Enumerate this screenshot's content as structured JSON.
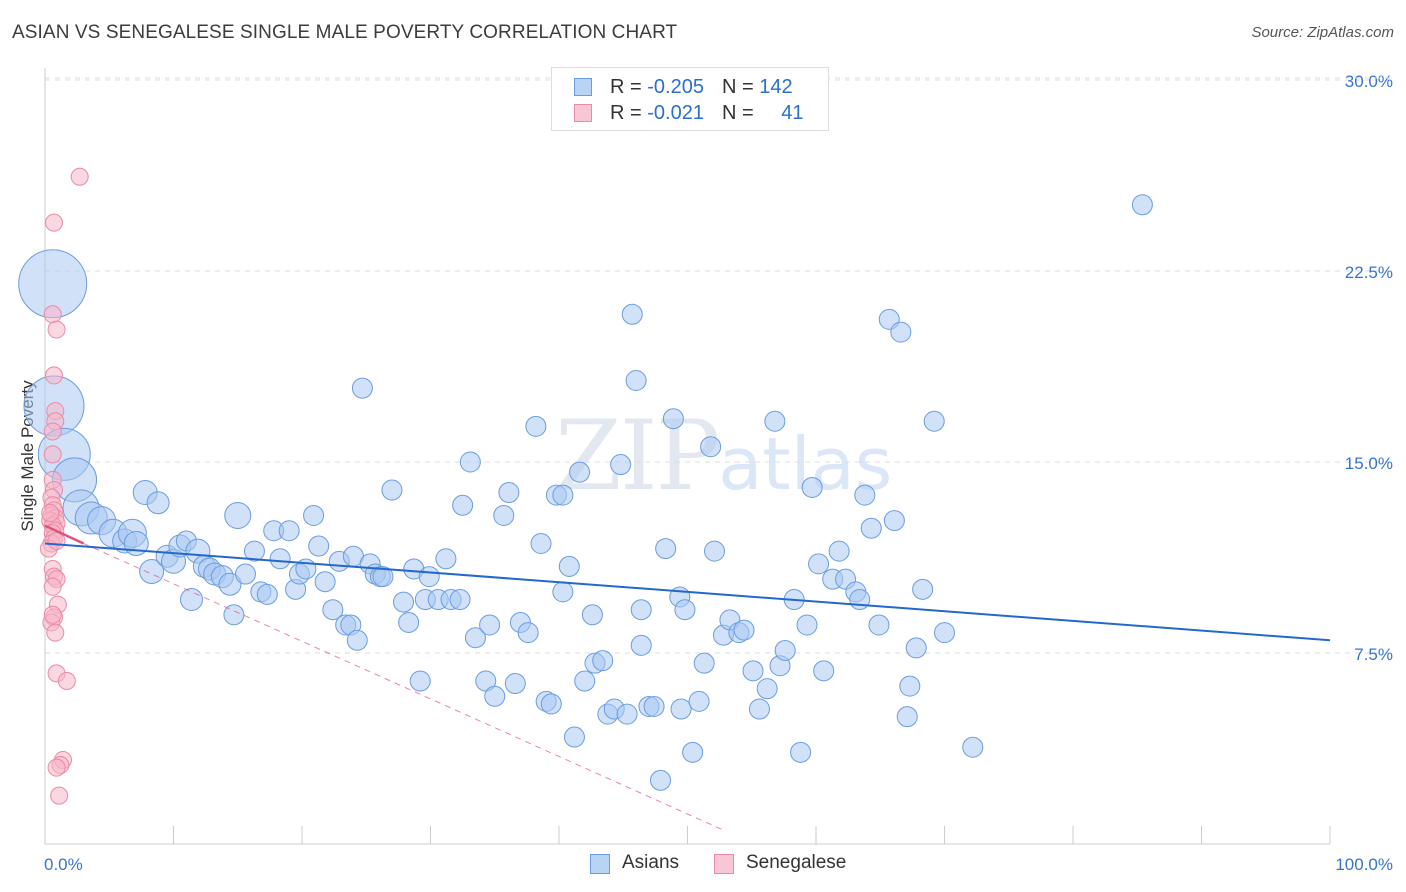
{
  "title": "ASIAN VS SENEGALESE SINGLE MALE POVERTY CORRELATION CHART",
  "source": "Source: ZipAtlas.com",
  "watermark": {
    "zip": "ZIP",
    "atlas": "atlas"
  },
  "colors": {
    "asian_fill": "#a9c8f2",
    "asian_stroke": "#6a9ce0",
    "asian_line": "#2468cc",
    "senegalese_fill": "#f7b6c9",
    "senegalese_stroke": "#e98aa7",
    "senegalese_line": "#e0527c",
    "axis_label": "#3575d0",
    "grid": "#dddddd"
  },
  "legend": {
    "rows": [
      {
        "r_label": "R = ",
        "r_value": "-0.205",
        "n_label": "N = ",
        "n_value": "142"
      },
      {
        "r_label": "R = ",
        "r_value": "-0.021",
        "n_label": "N = ",
        "n_value": "41"
      }
    ]
  },
  "chart_data": {
    "type": "scatter",
    "title": "ASIAN VS SENEGALESE SINGLE MALE POVERTY CORRELATION CHART",
    "xlabel": "",
    "ylabel": "Single Male Poverty",
    "xlim": [
      0,
      100
    ],
    "ylim": [
      0,
      30
    ],
    "x_tick_labels": [
      "0.0%",
      "100.0%"
    ],
    "y_ticks": [
      7.5,
      15.0,
      22.5,
      30.0
    ],
    "y_tick_labels": [
      "7.5%",
      "15.0%",
      "22.5%",
      "30.0%"
    ],
    "grid": true,
    "legend_position": "bottom-center",
    "series": [
      {
        "name": "Asians",
        "r": -0.205,
        "n": 142,
        "trend": {
          "x": [
            0,
            100
          ],
          "y": [
            11.8,
            8.0
          ]
        },
        "points": [
          [
            0.6,
            22.0,
            34
          ],
          [
            0.7,
            17.2,
            30
          ],
          [
            1.5,
            15.3,
            26
          ],
          [
            2.3,
            14.3,
            22
          ],
          [
            2.8,
            13.2,
            18
          ],
          [
            3.6,
            12.8,
            16
          ],
          [
            4.4,
            12.7,
            14
          ],
          [
            5.3,
            12.2,
            14
          ],
          [
            6.2,
            11.9,
            12
          ],
          [
            6.8,
            12.2,
            14
          ],
          [
            7.1,
            11.8,
            12
          ],
          [
            7.8,
            13.8,
            12
          ],
          [
            8.3,
            10.7,
            12
          ],
          [
            8.8,
            13.4,
            11
          ],
          [
            9.5,
            11.3,
            11
          ],
          [
            10.0,
            11.1,
            12
          ],
          [
            10.5,
            11.7,
            11
          ],
          [
            11.0,
            11.9,
            10
          ],
          [
            11.4,
            9.6,
            11
          ],
          [
            11.9,
            11.5,
            12
          ],
          [
            12.4,
            10.9,
            11
          ],
          [
            12.8,
            10.8,
            11
          ],
          [
            13.2,
            10.6,
            11
          ],
          [
            13.8,
            10.5,
            11
          ],
          [
            14.4,
            10.2,
            11
          ],
          [
            14.7,
            9.0,
            10
          ],
          [
            15.0,
            12.9,
            13
          ],
          [
            15.6,
            10.6,
            10
          ],
          [
            16.3,
            11.5,
            10
          ],
          [
            16.8,
            9.9,
            10
          ],
          [
            17.3,
            9.8,
            10
          ],
          [
            17.8,
            12.3,
            10
          ],
          [
            18.3,
            11.2,
            10
          ],
          [
            19.0,
            12.3,
            10
          ],
          [
            19.5,
            10.0,
            10
          ],
          [
            19.8,
            10.6,
            10
          ],
          [
            20.3,
            10.8,
            10
          ],
          [
            20.9,
            12.9,
            10
          ],
          [
            21.3,
            11.7,
            10
          ],
          [
            21.8,
            10.3,
            10
          ],
          [
            22.4,
            9.2,
            10
          ],
          [
            22.9,
            11.1,
            10
          ],
          [
            23.4,
            8.6,
            10
          ],
          [
            23.8,
            8.6,
            10
          ],
          [
            24.3,
            8.0,
            10
          ],
          [
            24.0,
            11.3,
            10
          ],
          [
            24.7,
            17.9,
            10
          ],
          [
            25.3,
            11.0,
            10
          ],
          [
            25.7,
            10.6,
            10
          ],
          [
            26.1,
            10.5,
            10
          ],
          [
            26.3,
            10.5,
            10
          ],
          [
            27.0,
            13.9,
            10
          ],
          [
            27.9,
            9.5,
            10
          ],
          [
            28.3,
            8.7,
            10
          ],
          [
            28.7,
            10.8,
            10
          ],
          [
            29.2,
            6.4,
            10
          ],
          [
            29.6,
            9.6,
            10
          ],
          [
            29.9,
            10.5,
            10
          ],
          [
            30.6,
            9.6,
            10
          ],
          [
            31.2,
            11.2,
            10
          ],
          [
            31.6,
            9.6,
            10
          ],
          [
            32.3,
            9.6,
            10
          ],
          [
            32.5,
            13.3,
            10
          ],
          [
            33.1,
            15.0,
            10
          ],
          [
            33.5,
            8.1,
            10
          ],
          [
            34.3,
            6.4,
            10
          ],
          [
            34.6,
            8.6,
            10
          ],
          [
            35.0,
            5.8,
            10
          ],
          [
            35.7,
            12.9,
            10
          ],
          [
            36.1,
            13.8,
            10
          ],
          [
            36.6,
            6.3,
            10
          ],
          [
            37.0,
            8.7,
            10
          ],
          [
            37.6,
            8.3,
            10
          ],
          [
            38.2,
            16.4,
            10
          ],
          [
            38.6,
            11.8,
            10
          ],
          [
            39.0,
            5.6,
            10
          ],
          [
            39.4,
            5.5,
            10
          ],
          [
            39.8,
            13.7,
            10
          ],
          [
            40.3,
            13.7,
            10
          ],
          [
            40.3,
            9.9,
            10
          ],
          [
            40.8,
            10.9,
            10
          ],
          [
            41.2,
            4.2,
            10
          ],
          [
            41.6,
            14.6,
            10
          ],
          [
            42.0,
            6.4,
            10
          ],
          [
            42.6,
            9.0,
            10
          ],
          [
            42.8,
            7.1,
            10
          ],
          [
            43.4,
            7.2,
            10
          ],
          [
            43.8,
            5.1,
            10
          ],
          [
            44.3,
            5.3,
            10
          ],
          [
            44.8,
            14.9,
            10
          ],
          [
            45.3,
            5.1,
            10
          ],
          [
            45.7,
            20.8,
            10
          ],
          [
            46.0,
            18.2,
            10
          ],
          [
            46.4,
            9.2,
            10
          ],
          [
            46.4,
            7.8,
            10
          ],
          [
            47.0,
            5.4,
            10
          ],
          [
            47.4,
            5.4,
            10
          ],
          [
            47.9,
            2.5,
            10
          ],
          [
            48.3,
            11.6,
            10
          ],
          [
            48.9,
            16.7,
            10
          ],
          [
            49.4,
            9.7,
            10
          ],
          [
            49.5,
            5.3,
            10
          ],
          [
            49.8,
            9.2,
            10
          ],
          [
            50.4,
            3.6,
            10
          ],
          [
            50.9,
            5.6,
            10
          ],
          [
            51.3,
            7.1,
            10
          ],
          [
            51.8,
            15.6,
            10
          ],
          [
            52.1,
            11.5,
            10
          ],
          [
            52.8,
            8.2,
            10
          ],
          [
            53.3,
            8.8,
            10
          ],
          [
            54.0,
            8.3,
            10
          ],
          [
            54.4,
            8.4,
            10
          ],
          [
            55.1,
            6.8,
            10
          ],
          [
            55.6,
            5.3,
            10
          ],
          [
            56.2,
            6.1,
            10
          ],
          [
            56.8,
            16.6,
            10
          ],
          [
            57.2,
            7.0,
            10
          ],
          [
            57.6,
            7.6,
            10
          ],
          [
            58.3,
            9.6,
            10
          ],
          [
            58.8,
            3.6,
            10
          ],
          [
            59.3,
            8.6,
            10
          ],
          [
            59.7,
            14.0,
            10
          ],
          [
            60.2,
            11.0,
            10
          ],
          [
            60.6,
            6.8,
            10
          ],
          [
            61.3,
            10.4,
            10
          ],
          [
            61.8,
            11.5,
            10
          ],
          [
            62.3,
            10.4,
            10
          ],
          [
            63.1,
            9.9,
            10
          ],
          [
            63.4,
            9.6,
            10
          ],
          [
            63.8,
            13.7,
            10
          ],
          [
            64.3,
            12.4,
            10
          ],
          [
            64.9,
            8.6,
            10
          ],
          [
            65.7,
            20.6,
            10
          ],
          [
            66.1,
            12.7,
            10
          ],
          [
            66.6,
            20.1,
            10
          ],
          [
            67.1,
            5.0,
            10
          ],
          [
            67.3,
            6.2,
            10
          ],
          [
            67.8,
            7.7,
            10
          ],
          [
            68.3,
            10.0,
            10
          ],
          [
            69.2,
            16.6,
            10
          ],
          [
            70.0,
            8.3,
            10
          ],
          [
            72.2,
            3.8,
            10
          ],
          [
            85.4,
            25.1,
            10
          ]
        ]
      },
      {
        "name": "Senegalese",
        "r": -0.021,
        "n": 41,
        "trend": {
          "x": [
            0,
            3.0
          ],
          "y": [
            12.5,
            11.8
          ]
        },
        "trend_extended": {
          "x": [
            3.0,
            53.0
          ],
          "y": [
            11.8,
            0.5
          ]
        },
        "points": [
          [
            2.7,
            26.2,
            10
          ],
          [
            0.7,
            24.4,
            10
          ],
          [
            0.6,
            20.8,
            10
          ],
          [
            0.9,
            20.2,
            10
          ],
          [
            0.7,
            18.4,
            10
          ],
          [
            0.8,
            17.0,
            10
          ],
          [
            0.8,
            16.6,
            10
          ],
          [
            0.6,
            16.2,
            10
          ],
          [
            0.6,
            15.3,
            10
          ],
          [
            0.6,
            14.3,
            10
          ],
          [
            0.7,
            13.9,
            10
          ],
          [
            0.5,
            13.6,
            10
          ],
          [
            0.6,
            13.3,
            10
          ],
          [
            0.7,
            13.1,
            10
          ],
          [
            0.5,
            12.9,
            10
          ],
          [
            0.8,
            12.8,
            10
          ],
          [
            0.4,
            12.7,
            10
          ],
          [
            0.9,
            12.6,
            10
          ],
          [
            0.6,
            12.5,
            10
          ],
          [
            0.8,
            12.3,
            10
          ],
          [
            0.6,
            12.2,
            10
          ],
          [
            0.7,
            12.0,
            10
          ],
          [
            0.5,
            11.8,
            10
          ],
          [
            0.3,
            11.6,
            10
          ],
          [
            0.6,
            10.8,
            10
          ],
          [
            0.7,
            10.5,
            10
          ],
          [
            0.9,
            10.4,
            10
          ],
          [
            1.0,
            9.4,
            10
          ],
          [
            0.7,
            8.9,
            10
          ],
          [
            0.5,
            8.7,
            10
          ],
          [
            0.8,
            8.3,
            10
          ],
          [
            0.9,
            6.7,
            10
          ],
          [
            1.7,
            6.4,
            10
          ],
          [
            1.4,
            3.3,
            10
          ],
          [
            1.2,
            3.1,
            10
          ],
          [
            0.9,
            3.0,
            10
          ],
          [
            1.1,
            1.9,
            10
          ],
          [
            0.6,
            9.0,
            10
          ],
          [
            0.9,
            11.9,
            10
          ],
          [
            0.4,
            13.0,
            10
          ],
          [
            0.6,
            10.1,
            10
          ]
        ]
      }
    ]
  }
}
